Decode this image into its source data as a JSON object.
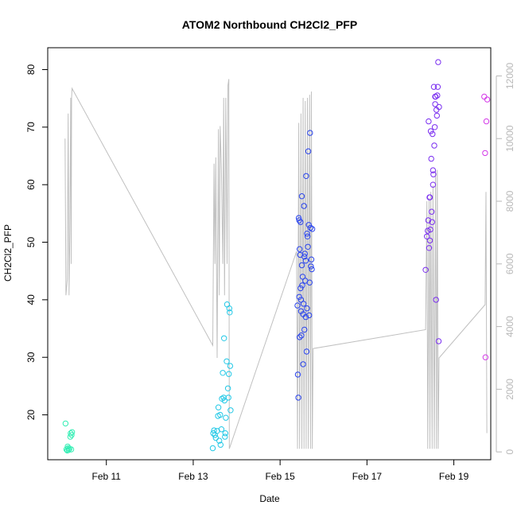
{
  "chart_data": {
    "type": "scatter",
    "title": "ATOM2 Northbound CH2Cl2_PFP",
    "xlabel": "Date",
    "ylabel": "CH2Cl2_PFP",
    "x_unit": "days (February)",
    "xlim": [
      9.65,
      19.85
    ],
    "ylim": [
      12.2,
      83.8
    ],
    "y2lim": [
      -250,
      12900
    ],
    "x_ticks": [
      {
        "value": 11,
        "label": "Feb 11"
      },
      {
        "value": 13,
        "label": "Feb 13"
      },
      {
        "value": 15,
        "label": "Feb 15"
      },
      {
        "value": 17,
        "label": "Feb 17"
      },
      {
        "value": 19,
        "label": "Feb 19"
      }
    ],
    "y_ticks": [
      20,
      30,
      40,
      50,
      60,
      70,
      80
    ],
    "y2_ticks": [
      0,
      2000,
      4000,
      6000,
      8000,
      10000,
      12000
    ],
    "grid": false,
    "legend": "none",
    "colors": {
      "secondary_line": "#c0c0c0",
      "right_axis": "#b8b8b8",
      "day10": "#33eeb4",
      "day13": "#22c8e6",
      "day15": "#2a44ee",
      "day18": "#7a2ef0",
      "day19": "#d43ae8"
    },
    "series": [
      {
        "name": "",
        "color": "#33eeb4",
        "points": [
          [
            10.06,
            18.5
          ],
          [
            10.08,
            14.0
          ],
          [
            10.1,
            13.8
          ],
          [
            10.11,
            14.5
          ],
          [
            10.13,
            13.9
          ],
          [
            10.15,
            14.1
          ],
          [
            10.17,
            16.2
          ],
          [
            10.18,
            16.8
          ],
          [
            10.19,
            14.0
          ],
          [
            10.2,
            16.5
          ],
          [
            10.21,
            17.0
          ],
          [
            10.12,
            14.2
          ]
        ]
      },
      {
        "name": "",
        "color": "#22c8e6",
        "points": [
          [
            13.45,
            14.2
          ],
          [
            13.48,
            17.3
          ],
          [
            13.5,
            16.5
          ],
          [
            13.52,
            16.0
          ],
          [
            13.55,
            17.2
          ],
          [
            13.57,
            19.8
          ],
          [
            13.58,
            21.3
          ],
          [
            13.6,
            15.5
          ],
          [
            13.62,
            20.0
          ],
          [
            13.63,
            14.8
          ],
          [
            13.65,
            17.5
          ],
          [
            13.66,
            22.8
          ],
          [
            13.68,
            27.3
          ],
          [
            13.7,
            23.0
          ],
          [
            13.71,
            33.3
          ],
          [
            13.72,
            22.5
          ],
          [
            13.74,
            16.8
          ],
          [
            13.75,
            19.5
          ],
          [
            13.77,
            29.3
          ],
          [
            13.78,
            39.2
          ],
          [
            13.8,
            24.6
          ],
          [
            13.81,
            23.0
          ],
          [
            13.82,
            27.1
          ],
          [
            13.83,
            38.5
          ],
          [
            13.84,
            37.8
          ],
          [
            13.85,
            28.5
          ],
          [
            13.86,
            20.8
          ],
          [
            13.46,
            16.8
          ],
          [
            13.73,
            16.2
          ]
        ]
      },
      {
        "name": "",
        "color": "#2a44ee",
        "points": [
          [
            15.4,
            39.0
          ],
          [
            15.41,
            27.0
          ],
          [
            15.42,
            23.0
          ],
          [
            15.43,
            54.2
          ],
          [
            15.44,
            40.5
          ],
          [
            15.45,
            48.8
          ],
          [
            15.46,
            47.8
          ],
          [
            15.47,
            53.5
          ],
          [
            15.48,
            38.0
          ],
          [
            15.49,
            33.8
          ],
          [
            15.5,
            58.0
          ],
          [
            15.51,
            42.5
          ],
          [
            15.52,
            44.0
          ],
          [
            15.53,
            28.8
          ],
          [
            15.54,
            39.3
          ],
          [
            15.55,
            56.3
          ],
          [
            15.56,
            34.8
          ],
          [
            15.57,
            48.0
          ],
          [
            15.58,
            43.3
          ],
          [
            15.59,
            46.8
          ],
          [
            15.6,
            61.5
          ],
          [
            15.61,
            31.0
          ],
          [
            15.62,
            38.5
          ],
          [
            15.63,
            51.0
          ],
          [
            15.64,
            49.2
          ],
          [
            15.65,
            65.8
          ],
          [
            15.66,
            53.0
          ],
          [
            15.67,
            37.3
          ],
          [
            15.68,
            43.0
          ],
          [
            15.69,
            69.0
          ],
          [
            15.7,
            52.5
          ],
          [
            15.71,
            45.8
          ],
          [
            15.72,
            47.0
          ],
          [
            15.73,
            45.3
          ],
          [
            15.74,
            52.3
          ],
          [
            15.45,
            33.5
          ],
          [
            15.47,
            42.0
          ],
          [
            15.5,
            46.0
          ],
          [
            15.53,
            37.5
          ],
          [
            15.56,
            47.5
          ],
          [
            15.59,
            37.0
          ],
          [
            15.62,
            51.5
          ],
          [
            15.44,
            53.8
          ],
          [
            15.48,
            40.0
          ]
        ]
      },
      {
        "name": "",
        "color": "#7a2ef0",
        "points": [
          [
            18.35,
            45.2
          ],
          [
            18.38,
            51.0
          ],
          [
            18.4,
            52.0
          ],
          [
            18.41,
            53.8
          ],
          [
            18.42,
            71.0
          ],
          [
            18.43,
            49.0
          ],
          [
            18.44,
            57.8
          ],
          [
            18.45,
            50.3
          ],
          [
            18.46,
            52.2
          ],
          [
            18.47,
            69.3
          ],
          [
            18.48,
            64.5
          ],
          [
            18.49,
            55.3
          ],
          [
            18.5,
            53.5
          ],
          [
            18.51,
            68.8
          ],
          [
            18.52,
            60.0
          ],
          [
            18.53,
            61.8
          ],
          [
            18.54,
            77.0
          ],
          [
            18.55,
            66.8
          ],
          [
            18.56,
            70.0
          ],
          [
            18.57,
            74.0
          ],
          [
            18.58,
            75.3
          ],
          [
            18.59,
            40.0
          ],
          [
            18.6,
            73.0
          ],
          [
            18.61,
            72.0
          ],
          [
            18.62,
            75.5
          ],
          [
            18.63,
            77.0
          ],
          [
            18.64,
            81.3
          ],
          [
            18.65,
            32.8
          ],
          [
            18.66,
            73.5
          ],
          [
            18.45,
            57.8
          ],
          [
            18.52,
            62.5
          ],
          [
            18.57,
            75.3
          ]
        ]
      },
      {
        "name": "",
        "color": "#d43ae8",
        "points": [
          [
            19.7,
            75.3
          ],
          [
            19.72,
            65.5
          ],
          [
            19.73,
            30.0
          ],
          [
            19.75,
            71.0
          ],
          [
            19.77,
            74.8
          ]
        ]
      }
    ],
    "secondary_series": {
      "name": "",
      "color": "#c0c0c0",
      "axis": "right",
      "points": [
        [
          10.05,
          10000
        ],
        [
          10.07,
          5000
        ],
        [
          10.1,
          5500
        ],
        [
          10.12,
          10800
        ],
        [
          10.14,
          5000
        ],
        [
          10.16,
          7000
        ],
        [
          10.18,
          11300
        ],
        [
          10.19,
          6000
        ],
        [
          10.2,
          11300
        ],
        [
          10.21,
          11600
        ],
        [
          13.45,
          3400
        ],
        [
          13.48,
          9200
        ],
        [
          13.5,
          6000
        ],
        [
          13.52,
          9400
        ],
        [
          13.55,
          3000
        ],
        [
          13.58,
          10300
        ],
        [
          13.6,
          5000
        ],
        [
          13.62,
          10400
        ],
        [
          13.65,
          9000
        ],
        [
          13.68,
          6000
        ],
        [
          13.7,
          11300
        ],
        [
          13.72,
          5000
        ],
        [
          13.75,
          11300
        ],
        [
          13.78,
          6000
        ],
        [
          13.8,
          11700
        ],
        [
          13.82,
          11900
        ],
        [
          13.83,
          100
        ],
        [
          15.38,
          6400
        ],
        [
          15.4,
          100
        ],
        [
          15.43,
          10500
        ],
        [
          15.45,
          100
        ],
        [
          15.48,
          10800
        ],
        [
          15.5,
          100
        ],
        [
          15.53,
          11300
        ],
        [
          15.55,
          100
        ],
        [
          15.58,
          11200
        ],
        [
          15.6,
          100
        ],
        [
          15.63,
          11300
        ],
        [
          15.65,
          100
        ],
        [
          15.68,
          11400
        ],
        [
          15.7,
          100
        ],
        [
          15.72,
          11500
        ],
        [
          15.74,
          100
        ],
        [
          15.76,
          3300
        ],
        [
          18.35,
          3900
        ],
        [
          18.38,
          8000
        ],
        [
          18.4,
          100
        ],
        [
          18.43,
          8100
        ],
        [
          18.45,
          100
        ],
        [
          18.47,
          8300
        ],
        [
          18.5,
          100
        ],
        [
          18.52,
          8500
        ],
        [
          18.55,
          100
        ],
        [
          18.58,
          9000
        ],
        [
          18.6,
          100
        ],
        [
          18.62,
          9000
        ],
        [
          18.64,
          100
        ],
        [
          18.66,
          3000
        ],
        [
          19.72,
          4700
        ],
        [
          19.74,
          8300
        ],
        [
          19.76,
          600
        ]
      ]
    }
  }
}
